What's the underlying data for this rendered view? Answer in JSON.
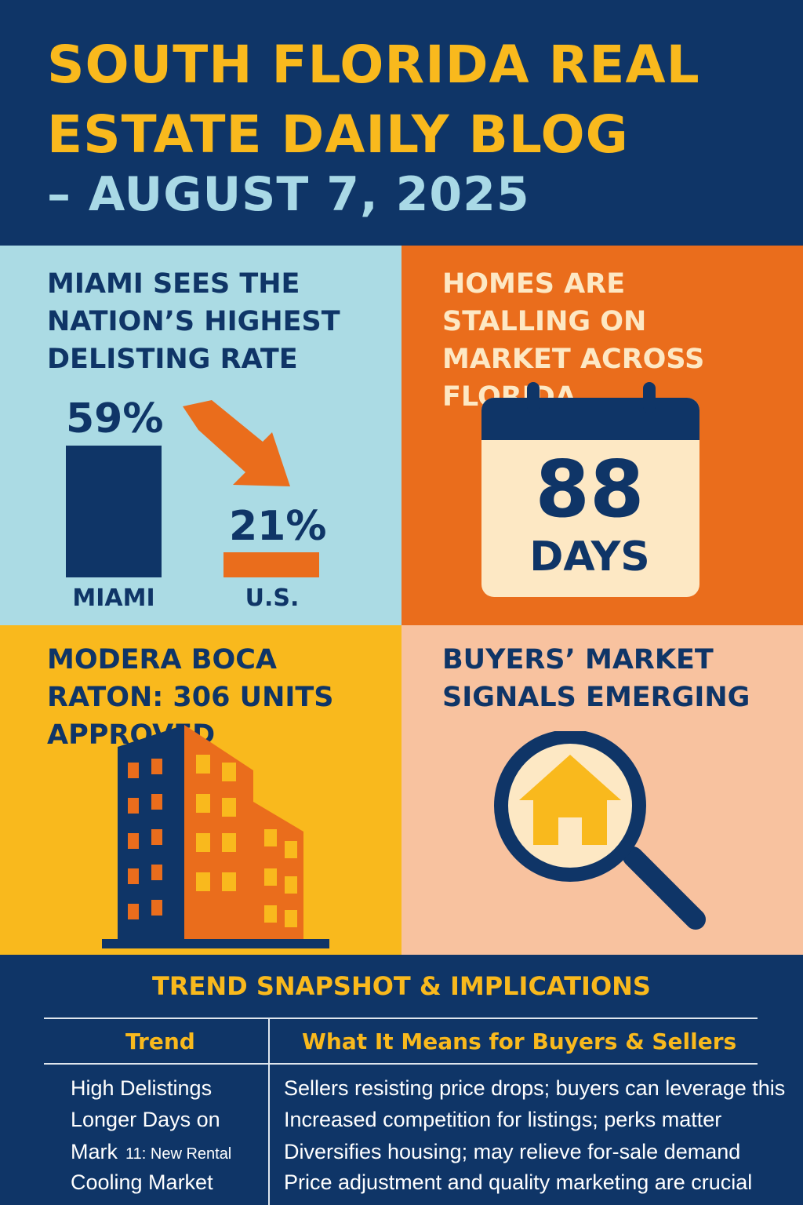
{
  "header": {
    "title": "SOUTH FLORIDA REAL ESTATE DAILY BLOG",
    "date": "– AUGUST 7, 2025"
  },
  "panels": {
    "delisting": {
      "title": "MIAMI SEES THE NATION’S HIGHEST DELISTING RATE",
      "miami_value": "59%",
      "miami_label": "MIAMI",
      "us_value": "21%",
      "us_label": "U.S.",
      "chart_data": {
        "type": "bar",
        "categories": [
          "MIAMI",
          "U.S."
        ],
        "values": [
          59,
          21
        ]
      }
    },
    "stalling": {
      "title": "HOMES ARE STALLING ON MARKET ACROSS FLORIDA",
      "number": "88",
      "unit": "DAYS"
    },
    "modera": {
      "title": "MODERA BOCA RATON: 306 UNITS APPROVED"
    },
    "buyers": {
      "title": "BUYERS’ MARKET SIGNALS EMERGING"
    }
  },
  "snapshot": {
    "title": "TREND SNAPSHOT & IMPLICATIONS",
    "col_trend": "Trend",
    "col_meaning": "What It Means for Buyers & Sellers",
    "rows": [
      {
        "trend": "High Delistings",
        "note": "",
        "meaning": "Sellers resisting price drops; buyers can leverage this"
      },
      {
        "trend": "Longer Days on",
        "note": "",
        "meaning": "Increased competition for listings; perks matter"
      },
      {
        "trend": "Mark",
        "note": "11: New Rental",
        "meaning": "Diversifies housing; may relieve for-sale demand"
      },
      {
        "trend": "Cooling Market",
        "note": "",
        "meaning": "Price adjustment and quality marketing are crucial"
      }
    ]
  },
  "colors": {
    "navy": "#0f3567",
    "yellow": "#f9b91d",
    "orange": "#ea6d1c",
    "light_blue": "#abdbe4",
    "peach": "#f8c29f",
    "cream": "#fde8c4"
  },
  "icons": [
    "down-arrow-icon",
    "calendar-icon",
    "building-icon",
    "magnifier-house-icon"
  ]
}
